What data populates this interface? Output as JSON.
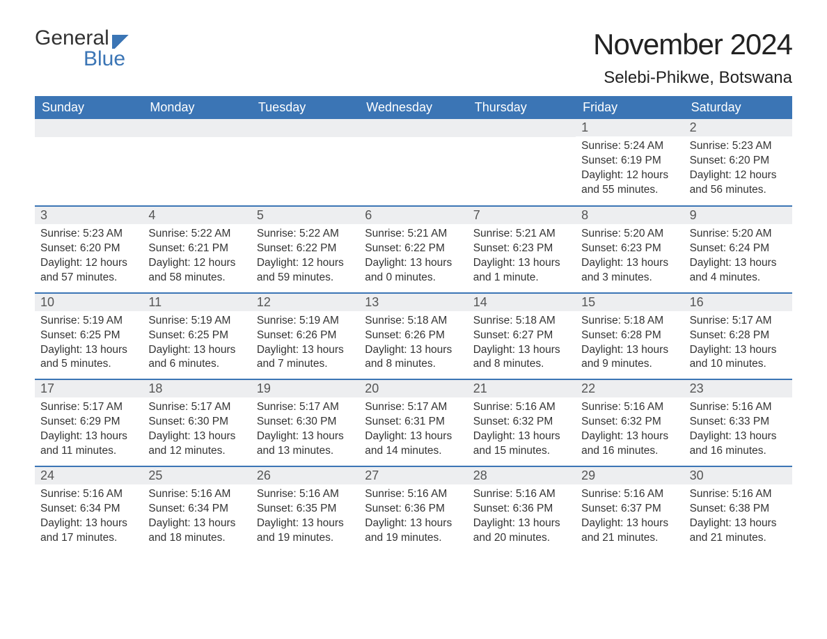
{
  "logo": {
    "line1": "General",
    "line2": "Blue",
    "brand_color": "#3b75b5"
  },
  "header": {
    "month_title": "November 2024",
    "location": "Selebi-Phikwe, Botswana"
  },
  "calendar": {
    "weekday_labels": [
      "Sunday",
      "Monday",
      "Tuesday",
      "Wednesday",
      "Thursday",
      "Friday",
      "Saturday"
    ],
    "header_bg": "#3b75b5",
    "header_text_color": "#ffffff",
    "row_divider_color": "#3b75b5",
    "daynum_bg": "#edeef0",
    "text_color": "#333333",
    "font_size_body": 15.5,
    "font_size_header": 18,
    "weeks": [
      [
        null,
        null,
        null,
        null,
        null,
        {
          "n": "1",
          "sunrise": "5:24 AM",
          "sunset": "6:19 PM",
          "daylight": "12 hours and 55 minutes."
        },
        {
          "n": "2",
          "sunrise": "5:23 AM",
          "sunset": "6:20 PM",
          "daylight": "12 hours and 56 minutes."
        }
      ],
      [
        {
          "n": "3",
          "sunrise": "5:23 AM",
          "sunset": "6:20 PM",
          "daylight": "12 hours and 57 minutes."
        },
        {
          "n": "4",
          "sunrise": "5:22 AM",
          "sunset": "6:21 PM",
          "daylight": "12 hours and 58 minutes."
        },
        {
          "n": "5",
          "sunrise": "5:22 AM",
          "sunset": "6:22 PM",
          "daylight": "12 hours and 59 minutes."
        },
        {
          "n": "6",
          "sunrise": "5:21 AM",
          "sunset": "6:22 PM",
          "daylight": "13 hours and 0 minutes."
        },
        {
          "n": "7",
          "sunrise": "5:21 AM",
          "sunset": "6:23 PM",
          "daylight": "13 hours and 1 minute."
        },
        {
          "n": "8",
          "sunrise": "5:20 AM",
          "sunset": "6:23 PM",
          "daylight": "13 hours and 3 minutes."
        },
        {
          "n": "9",
          "sunrise": "5:20 AM",
          "sunset": "6:24 PM",
          "daylight": "13 hours and 4 minutes."
        }
      ],
      [
        {
          "n": "10",
          "sunrise": "5:19 AM",
          "sunset": "6:25 PM",
          "daylight": "13 hours and 5 minutes."
        },
        {
          "n": "11",
          "sunrise": "5:19 AM",
          "sunset": "6:25 PM",
          "daylight": "13 hours and 6 minutes."
        },
        {
          "n": "12",
          "sunrise": "5:19 AM",
          "sunset": "6:26 PM",
          "daylight": "13 hours and 7 minutes."
        },
        {
          "n": "13",
          "sunrise": "5:18 AM",
          "sunset": "6:26 PM",
          "daylight": "13 hours and 8 minutes."
        },
        {
          "n": "14",
          "sunrise": "5:18 AM",
          "sunset": "6:27 PM",
          "daylight": "13 hours and 8 minutes."
        },
        {
          "n": "15",
          "sunrise": "5:18 AM",
          "sunset": "6:28 PM",
          "daylight": "13 hours and 9 minutes."
        },
        {
          "n": "16",
          "sunrise": "5:17 AM",
          "sunset": "6:28 PM",
          "daylight": "13 hours and 10 minutes."
        }
      ],
      [
        {
          "n": "17",
          "sunrise": "5:17 AM",
          "sunset": "6:29 PM",
          "daylight": "13 hours and 11 minutes."
        },
        {
          "n": "18",
          "sunrise": "5:17 AM",
          "sunset": "6:30 PM",
          "daylight": "13 hours and 12 minutes."
        },
        {
          "n": "19",
          "sunrise": "5:17 AM",
          "sunset": "6:30 PM",
          "daylight": "13 hours and 13 minutes."
        },
        {
          "n": "20",
          "sunrise": "5:17 AM",
          "sunset": "6:31 PM",
          "daylight": "13 hours and 14 minutes."
        },
        {
          "n": "21",
          "sunrise": "5:16 AM",
          "sunset": "6:32 PM",
          "daylight": "13 hours and 15 minutes."
        },
        {
          "n": "22",
          "sunrise": "5:16 AM",
          "sunset": "6:32 PM",
          "daylight": "13 hours and 16 minutes."
        },
        {
          "n": "23",
          "sunrise": "5:16 AM",
          "sunset": "6:33 PM",
          "daylight": "13 hours and 16 minutes."
        }
      ],
      [
        {
          "n": "24",
          "sunrise": "5:16 AM",
          "sunset": "6:34 PM",
          "daylight": "13 hours and 17 minutes."
        },
        {
          "n": "25",
          "sunrise": "5:16 AM",
          "sunset": "6:34 PM",
          "daylight": "13 hours and 18 minutes."
        },
        {
          "n": "26",
          "sunrise": "5:16 AM",
          "sunset": "6:35 PM",
          "daylight": "13 hours and 19 minutes."
        },
        {
          "n": "27",
          "sunrise": "5:16 AM",
          "sunset": "6:36 PM",
          "daylight": "13 hours and 19 minutes."
        },
        {
          "n": "28",
          "sunrise": "5:16 AM",
          "sunset": "6:36 PM",
          "daylight": "13 hours and 20 minutes."
        },
        {
          "n": "29",
          "sunrise": "5:16 AM",
          "sunset": "6:37 PM",
          "daylight": "13 hours and 21 minutes."
        },
        {
          "n": "30",
          "sunrise": "5:16 AM",
          "sunset": "6:38 PM",
          "daylight": "13 hours and 21 minutes."
        }
      ]
    ],
    "labels": {
      "sunrise": "Sunrise:",
      "sunset": "Sunset:",
      "daylight": "Daylight:"
    }
  }
}
